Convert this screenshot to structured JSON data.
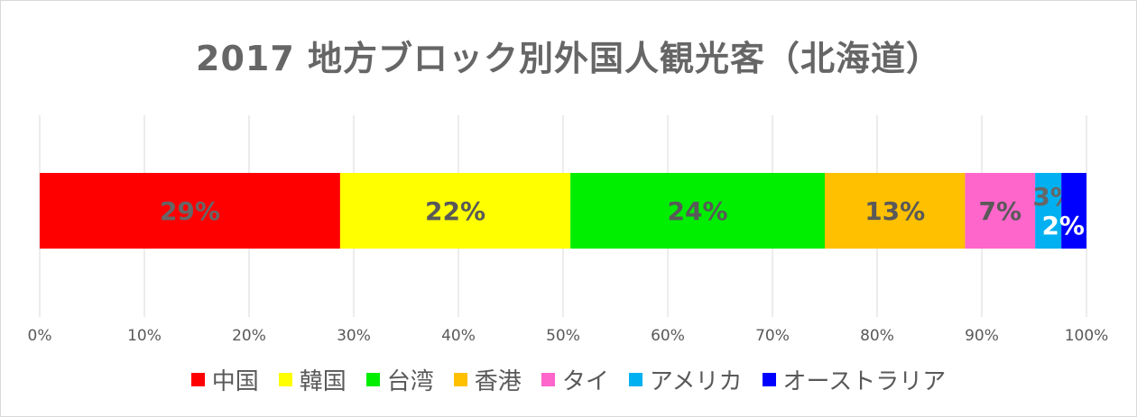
{
  "chart_data": {
    "type": "bar",
    "orientation": "horizontal",
    "stacked": "percent",
    "title": "2017 地方ブロック別外国人観光客（北海道）",
    "x_ticks": [
      "0%",
      "10%",
      "20%",
      "30%",
      "40%",
      "50%",
      "60%",
      "70%",
      "80%",
      "90%",
      "100%"
    ],
    "xlim": [
      0,
      100
    ],
    "grid": "vertical",
    "legend_position": "bottom",
    "series": [
      {
        "name": "中国",
        "value": 28.7,
        "label": "29%",
        "color": "#ff0000",
        "label_color": "#666666"
      },
      {
        "name": "韓国",
        "value": 22.0,
        "label": "22%",
        "color": "#ffff00",
        "label_color": "#595959"
      },
      {
        "name": "台湾",
        "value": 24.3,
        "label": "24%",
        "color": "#00ee00",
        "label_color": "#595959"
      },
      {
        "name": "香港",
        "value": 13.4,
        "label": "13%",
        "color": "#ffc000",
        "label_color": "#595959"
      },
      {
        "name": "タイ",
        "value": 6.7,
        "label": "7%",
        "color": "#ff66cc",
        "label_color": "#595959"
      },
      {
        "name": "アメリカ",
        "value": 2.5,
        "label": "3%",
        "color": "#00b0f0",
        "label_color": "#666666"
      },
      {
        "name": "オーストラリア",
        "value": 2.4,
        "label": "2%",
        "color": "#0000ff",
        "label_color": "#ffffff"
      }
    ]
  }
}
